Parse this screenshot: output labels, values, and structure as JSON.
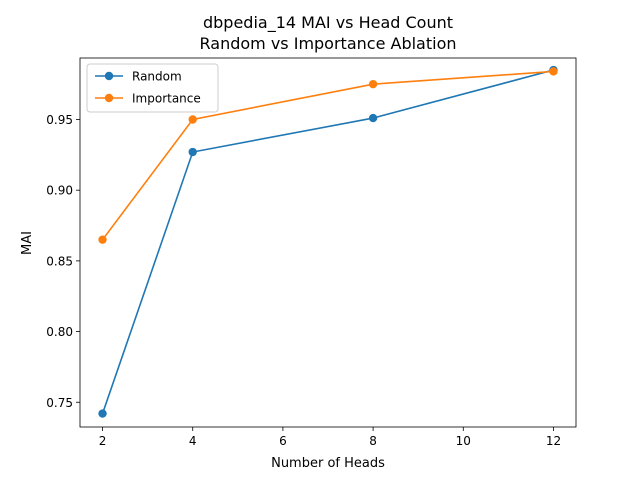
{
  "chart_data": {
    "type": "line",
    "title": "dbpedia_14 MAI vs Head Count\nRandom vs Importance Ablation",
    "xlabel": "Number of Heads",
    "ylabel": "MAI",
    "xlim": [
      1.5,
      12.5
    ],
    "ylim": [
      0.7325,
      0.9935
    ],
    "xticks": [
      2,
      4,
      6,
      8,
      10,
      12
    ],
    "yticks": [
      0.75,
      0.8,
      0.85,
      0.9,
      0.95
    ],
    "grid": false,
    "legend_position": "upper-left",
    "series": [
      {
        "name": "Random",
        "color": "#1f77b4",
        "x": [
          2,
          4,
          8,
          12
        ],
        "y": [
          0.742,
          0.927,
          0.951,
          0.985
        ]
      },
      {
        "name": "Importance",
        "color": "#ff7f0e",
        "x": [
          2,
          4,
          8,
          12
        ],
        "y": [
          0.865,
          0.95,
          0.975,
          0.984
        ]
      }
    ]
  }
}
